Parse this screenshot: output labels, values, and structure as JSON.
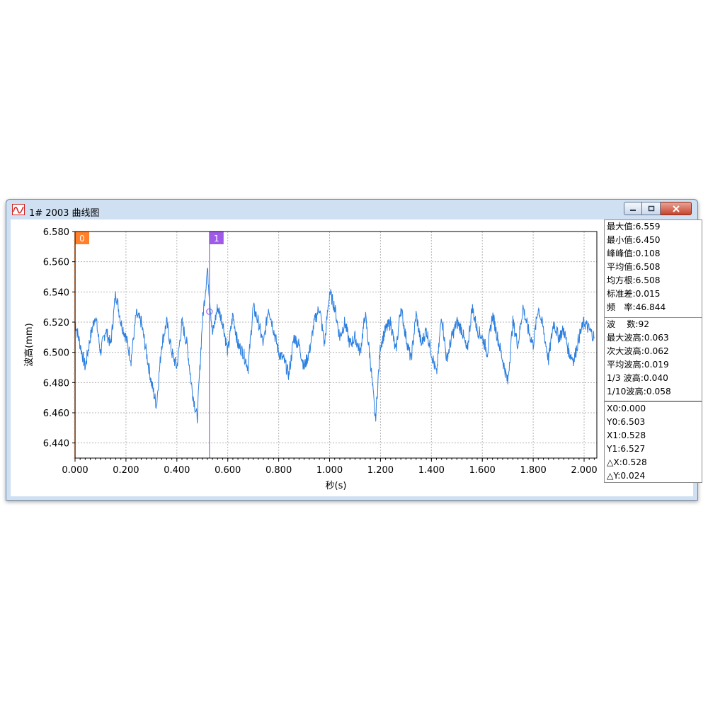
{
  "window": {
    "title": "1# 2003 曲线图",
    "app_icon": "chart-wave-icon",
    "buttons": {
      "minimize": "minimize-icon",
      "maximize": "restore-icon",
      "close": "close-icon"
    }
  },
  "cursors": [
    {
      "label": "0",
      "x": 0.0,
      "color": "#ff7f2a"
    },
    {
      "label": "1",
      "x": 0.528,
      "color": "#a05ae8"
    }
  ],
  "stats_panel": [
    {
      "label": "最大值:",
      "value": "6.559"
    },
    {
      "label": "最小值:",
      "value": "6.450"
    },
    {
      "label": "峰峰值:",
      "value": "0.108"
    },
    {
      "label": "平均值:",
      "value": "6.508"
    },
    {
      "label": "均方根:",
      "value": "6.508"
    },
    {
      "label": "标准差:",
      "value": "0.015"
    },
    {
      "label": "频　率:",
      "value": "46.844"
    }
  ],
  "wave_panel": [
    {
      "label": "波　 数:",
      "value": "92"
    },
    {
      "label": "最大波高:",
      "value": "0.063"
    },
    {
      "label": "次大波高:",
      "value": "0.062"
    },
    {
      "label": "平均波高:",
      "value": "0.019"
    },
    {
      "label": "1/3 波高:",
      "value": "0.040"
    },
    {
      "label": "1/10波高:",
      "value": "0.058"
    }
  ],
  "cursor_panel": [
    {
      "label": "X0:",
      "value": "0.000"
    },
    {
      "label": "Y0:",
      "value": "6.503"
    },
    {
      "label": "X1:",
      "value": "0.528"
    },
    {
      "label": "Y1:",
      "value": "6.527"
    },
    {
      "label": "△X:",
      "value": "0.528"
    },
    {
      "label": "△Y:",
      "value": "0.024"
    }
  ],
  "chart_data": {
    "type": "line",
    "xlabel": "秒(s)",
    "ylabel": "波高(mm)",
    "xlim": [
      0.0,
      2.05
    ],
    "ylim": [
      6.43,
      6.58
    ],
    "x_ticks": [
      "0.000",
      "0.200",
      "0.400",
      "0.600",
      "0.800",
      "1.000",
      "1.200",
      "1.400",
      "1.600",
      "1.800",
      "2.000"
    ],
    "y_ticks": [
      "6.580",
      "6.560",
      "6.540",
      "6.520",
      "6.500",
      "6.480",
      "6.460",
      "6.440"
    ],
    "grid": true,
    "line_color": "#2b7fe0",
    "series": [
      {
        "x": [
          0.0,
          0.02,
          0.04,
          0.06,
          0.08,
          0.1,
          0.12,
          0.14,
          0.16,
          0.18,
          0.2,
          0.22,
          0.24,
          0.26,
          0.28,
          0.3,
          0.32,
          0.34,
          0.36,
          0.38,
          0.4,
          0.42,
          0.44,
          0.46,
          0.48,
          0.5,
          0.52,
          0.54,
          0.56,
          0.58,
          0.6,
          0.62,
          0.64,
          0.66,
          0.68,
          0.7,
          0.72,
          0.74,
          0.76,
          0.78,
          0.8,
          0.82,
          0.84,
          0.86,
          0.88,
          0.9,
          0.92,
          0.94,
          0.96,
          0.98,
          1.0,
          1.02,
          1.04,
          1.06,
          1.08,
          1.1,
          1.12,
          1.14,
          1.16,
          1.18,
          1.2,
          1.22,
          1.24,
          1.26,
          1.28,
          1.3,
          1.32,
          1.34,
          1.36,
          1.38,
          1.4,
          1.42,
          1.44,
          1.46,
          1.48,
          1.5,
          1.52,
          1.54,
          1.56,
          1.58,
          1.6,
          1.62,
          1.64,
          1.66,
          1.68,
          1.7,
          1.72,
          1.74,
          1.76,
          1.78,
          1.8,
          1.82,
          1.84,
          1.86,
          1.88,
          1.9,
          1.92,
          1.94,
          1.96,
          1.98,
          2.0,
          2.02,
          2.04
        ],
        "values": [
          6.52,
          6.505,
          6.49,
          6.51,
          6.525,
          6.5,
          6.515,
          6.505,
          6.54,
          6.52,
          6.51,
          6.495,
          6.525,
          6.52,
          6.5,
          6.48,
          6.465,
          6.505,
          6.52,
          6.5,
          6.49,
          6.52,
          6.505,
          6.475,
          6.456,
          6.52,
          6.555,
          6.512,
          6.53,
          6.52,
          6.5,
          6.525,
          6.505,
          6.5,
          6.49,
          6.53,
          6.52,
          6.505,
          6.53,
          6.515,
          6.5,
          6.495,
          6.485,
          6.51,
          6.505,
          6.49,
          6.5,
          6.52,
          6.53,
          6.505,
          6.54,
          6.53,
          6.51,
          6.52,
          6.505,
          6.51,
          6.5,
          6.525,
          6.495,
          6.455,
          6.505,
          6.515,
          6.52,
          6.5,
          6.53,
          6.51,
          6.495,
          6.525,
          6.505,
          6.515,
          6.5,
          6.485,
          6.525,
          6.495,
          6.51,
          6.52,
          6.515,
          6.5,
          6.53,
          6.515,
          6.51,
          6.5,
          6.525,
          6.51,
          6.495,
          6.48,
          6.52,
          6.505,
          6.53,
          6.515,
          6.505,
          6.53,
          6.515,
          6.495,
          6.52,
          6.51,
          6.515,
          6.5,
          6.495,
          6.51,
          6.52,
          6.515,
          6.51
        ]
      }
    ]
  }
}
